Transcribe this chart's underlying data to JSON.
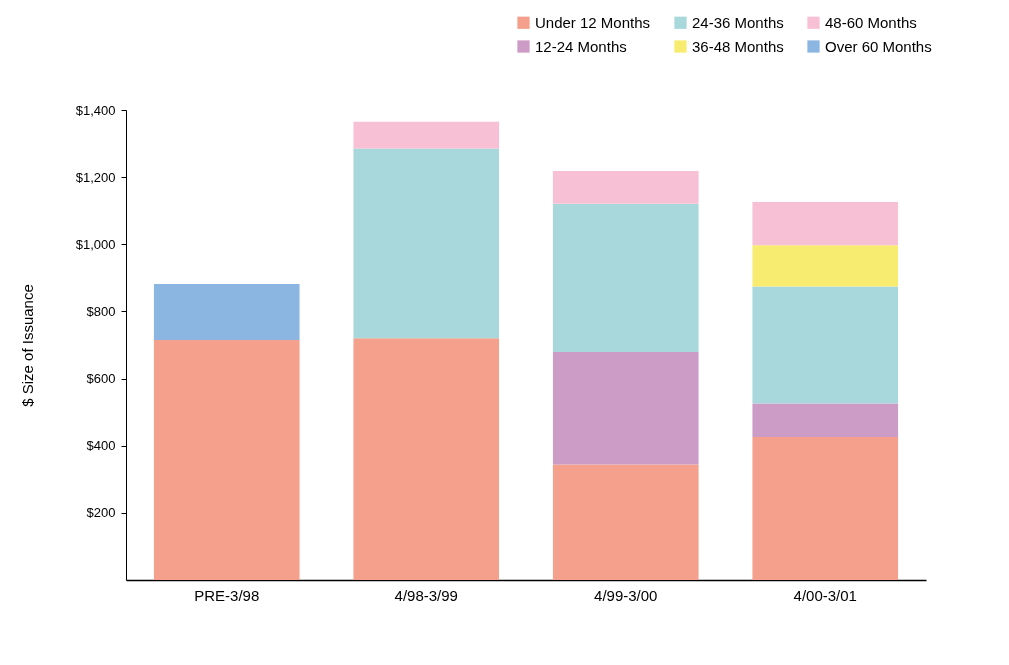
{
  "chart_data": {
    "type": "bar",
    "stacked": true,
    "ylabel": "$ Size of Issuance",
    "categories": [
      "PRE-3/98",
      "4/98-3/99",
      "4/99-3/00",
      "4/00-3/01"
    ],
    "series": [
      {
        "name": "Under 12 Months",
        "color": "#f4a08c",
        "values": [
          715,
          720,
          344,
          426
        ]
      },
      {
        "name": "12-24 Months",
        "color": "#cc9cc6",
        "values": [
          null,
          null,
          335,
          100
        ]
      },
      {
        "name": "24-36 Months",
        "color": "#a8d8dc",
        "values": [
          null,
          565,
          442,
          348
        ]
      },
      {
        "name": "36-48 Months",
        "color": "#f8ec70",
        "values": [
          null,
          null,
          null,
          123
        ]
      },
      {
        "name": "48-60 Months",
        "color": "#f8c0d4",
        "values": [
          null,
          80,
          97,
          129
        ]
      },
      {
        "name": "Over 60 Months",
        "color": "#8cb6e2",
        "values": [
          167,
          null,
          null,
          null
        ]
      }
    ],
    "ylim": [
      0,
      1400
    ],
    "yticks": [
      {
        "value": 200,
        "label": "$200"
      },
      {
        "value": 400,
        "label": "$400"
      },
      {
        "value": 600,
        "label": "$600"
      },
      {
        "value": 800,
        "label": "$800"
      },
      {
        "value": 1000,
        "label": "$1,000"
      },
      {
        "value": 1200,
        "label": "$1,200"
      },
      {
        "value": 1400,
        "label": "$1,400"
      }
    ],
    "grid": false,
    "legend": "top right"
  }
}
